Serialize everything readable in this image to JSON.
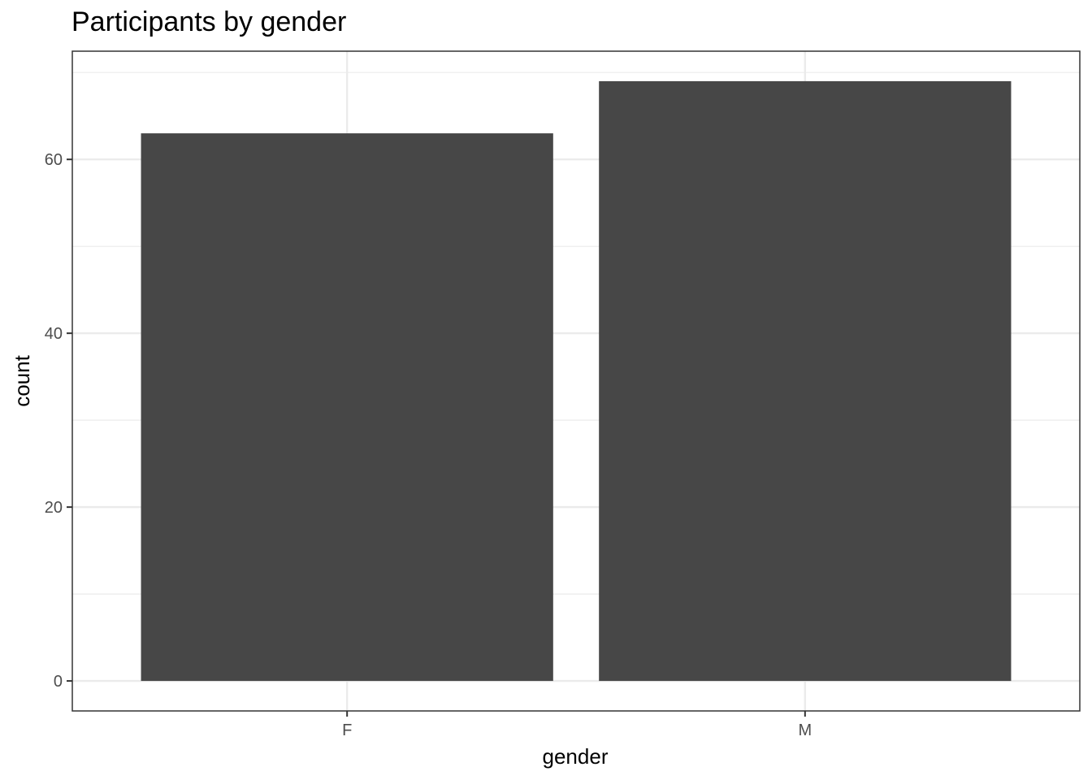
{
  "chart_data": {
    "type": "bar",
    "title": "Participants by gender",
    "xlabel": "gender",
    "ylabel": "count",
    "categories": [
      "F",
      "M"
    ],
    "values": [
      63,
      69
    ],
    "ylim": [
      -3.45,
      72.45
    ],
    "yticks": [
      0,
      20,
      40,
      60
    ],
    "ytick_labels": [
      "0",
      "20",
      "40",
      "60"
    ],
    "grid": true,
    "bar_color": "#474747",
    "grid_color": "#ebebeb",
    "panel_border_color": "#333333"
  }
}
